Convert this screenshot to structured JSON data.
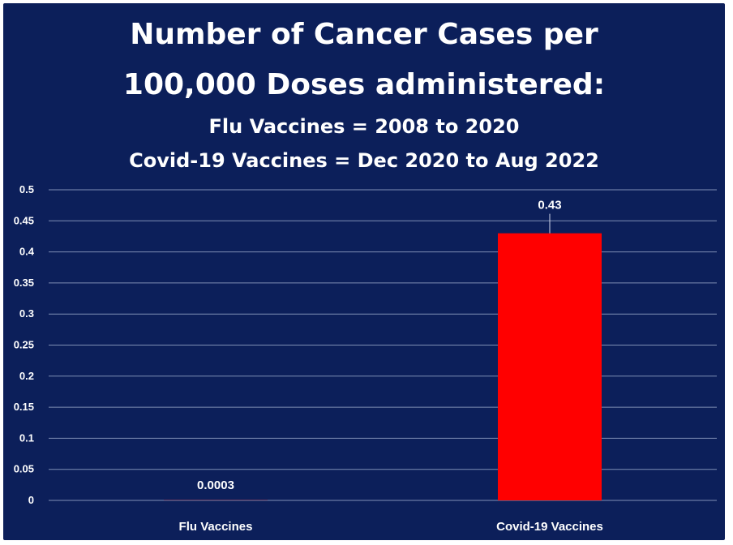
{
  "chart_data": {
    "type": "bar",
    "title_lines": [
      "Number of Cancer Cases per",
      "100,000 Doses administered:",
      "Flu Vaccines = 2008 to 2020",
      "Covid-19 Vaccines = Dec 2020 to Aug 2022"
    ],
    "categories": [
      "Flu Vaccines",
      "Covid-19 Vaccines"
    ],
    "values": [
      0.0003,
      0.43
    ],
    "data_labels": [
      "0.0003",
      "0.43"
    ],
    "ylim": [
      0,
      0.5
    ],
    "yticks": [
      "0",
      "0.05",
      "0.1",
      "0.15",
      "0.2",
      "0.25",
      "0.3",
      "0.35",
      "0.4",
      "0.45",
      "0.5"
    ],
    "grid": true,
    "legend": "none",
    "colors": {
      "background": "#0c1f5a",
      "bar": "#ff0000",
      "grid": "#7f8fb5",
      "text": "#ffffff"
    }
  }
}
